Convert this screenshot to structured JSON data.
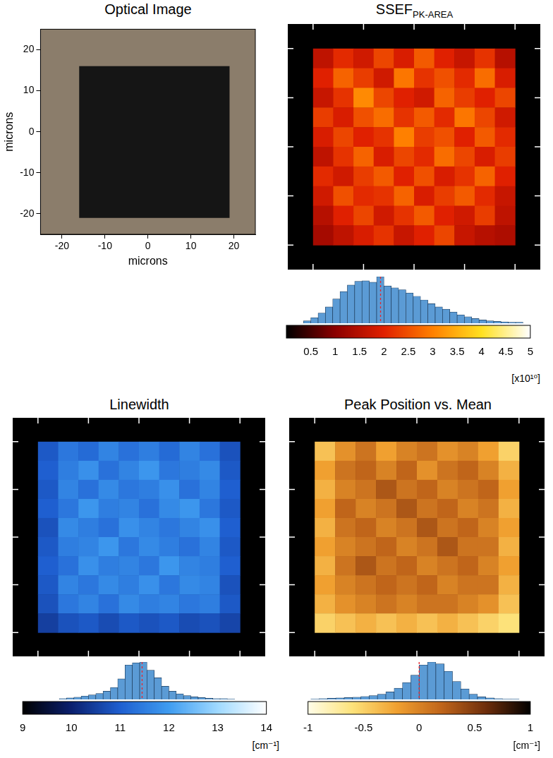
{
  "chart_data": [
    {
      "type": "image",
      "title": "Optical Image",
      "x_label": "microns",
      "y_label": "microns",
      "xlim": [
        -25,
        25
      ],
      "ylim": [
        -25,
        25
      ],
      "xticks": [
        -20,
        -10,
        0,
        10,
        20
      ],
      "yticks": [
        -20,
        -10,
        0,
        10,
        20
      ],
      "color": "#8b7d6b",
      "square": {
        "xlim": [
          -16,
          19
        ],
        "ylim": [
          -21,
          16
        ],
        "color": "#151515"
      }
    },
    {
      "type": "heatmap",
      "title": "SSEF",
      "title_subscript": "PK-AREA",
      "xlim": [
        -25,
        25
      ],
      "ylim": [
        -25,
        25
      ],
      "xticks": [
        -20,
        -10,
        0,
        10,
        20
      ],
      "yticks": [
        -20,
        -10,
        0,
        10,
        20
      ],
      "tick_labels": false,
      "x_edges": [
        -20,
        -16,
        -12,
        -8,
        -4,
        0,
        4,
        8,
        12,
        16,
        20
      ],
      "y_edges": [
        20,
        16,
        12,
        8,
        4,
        0,
        -4,
        -8,
        -12,
        -16,
        -20
      ],
      "cells": [
        [
          1.6,
          2.1,
          1.8,
          2.4,
          1.9,
          2.6,
          2.0,
          1.7,
          2.2,
          1.5
        ],
        [
          2.0,
          2.7,
          2.3,
          1.8,
          2.9,
          2.2,
          2.5,
          2.1,
          2.8,
          1.9
        ],
        [
          1.7,
          2.2,
          3.1,
          2.4,
          2.0,
          1.8,
          2.7,
          2.3,
          2.0,
          2.4
        ],
        [
          2.3,
          1.9,
          2.5,
          2.8,
          2.2,
          2.6,
          2.1,
          2.9,
          2.4,
          1.8
        ],
        [
          1.9,
          2.4,
          2.0,
          2.2,
          3.0,
          2.3,
          2.5,
          2.0,
          2.6,
          2.1
        ],
        [
          1.6,
          2.2,
          2.7,
          1.9,
          2.4,
          2.1,
          2.8,
          2.4,
          1.9,
          2.3
        ],
        [
          2.1,
          1.8,
          2.3,
          2.6,
          2.0,
          2.5,
          1.9,
          2.2,
          2.7,
          2.0
        ],
        [
          1.8,
          2.5,
          2.1,
          2.2,
          2.7,
          1.9,
          2.3,
          2.6,
          2.1,
          1.7
        ],
        [
          1.5,
          2.0,
          2.4,
          1.8,
          2.2,
          2.6,
          2.0,
          1.8,
          2.3,
          1.6
        ],
        [
          1.3,
          1.6,
          1.9,
          2.2,
          1.7,
          2.0,
          2.4,
          1.7,
          1.5,
          1.4
        ]
      ],
      "color_bar": {
        "range": [
          0,
          5
        ],
        "ticks": [
          0.5,
          1,
          1.5,
          2,
          2.5,
          3,
          3.5,
          4,
          4.5,
          5
        ],
        "label": "[x10¹⁰]",
        "colors": [
          "#000000",
          "#8b0000",
          "#e02000",
          "#ff8000",
          "#ffe020",
          "#ffffff"
        ]
      },
      "histogram": {
        "bins": [
          0.35,
          0.5,
          0.65,
          0.8,
          0.95,
          1.1,
          1.25,
          1.4,
          1.55,
          1.7,
          1.85,
          2.0,
          2.15,
          2.3,
          2.45,
          2.6,
          2.75,
          2.9,
          3.05,
          3.2,
          3.35,
          3.5,
          3.65,
          3.8,
          3.95,
          4.1,
          4.25,
          4.4,
          4.55,
          4.7,
          4.85
        ],
        "counts": [
          5,
          12,
          22,
          35,
          52,
          68,
          82,
          90,
          91,
          88,
          100,
          80,
          76,
          72,
          65,
          58,
          50,
          42,
          35,
          30,
          24,
          18,
          14,
          10,
          7,
          5,
          4,
          3,
          2,
          2
        ],
        "mean": 1.93,
        "color": "#5b9bd5",
        "ylim": [
          0,
          100
        ],
        "tick_labels": "x"
      }
    },
    {
      "type": "heatmap",
      "title": "Linewidth",
      "xlim": [
        -25,
        25
      ],
      "ylim": [
        -25,
        25
      ],
      "xticks": [
        -20,
        -10,
        0,
        10,
        20
      ],
      "yticks": [
        -20,
        -10,
        0,
        10,
        20
      ],
      "tick_labels": false,
      "x_edges": [
        -20,
        -16,
        -12,
        -8,
        -4,
        0,
        4,
        8,
        12,
        16,
        20
      ],
      "y_edges": [
        20,
        16,
        12,
        8,
        4,
        0,
        -4,
        -8,
        -12,
        -16,
        -20
      ],
      "cells": [
        [
          10.9,
          11.4,
          11.2,
          11.6,
          11.3,
          11.5,
          11.2,
          11.6,
          11.3,
          10.8
        ],
        [
          11.0,
          11.5,
          11.8,
          11.3,
          11.6,
          11.9,
          11.4,
          11.5,
          11.7,
          10.9
        ],
        [
          10.9,
          11.6,
          11.3,
          11.7,
          11.4,
          11.5,
          11.8,
          11.3,
          11.6,
          11.0
        ],
        [
          11.0,
          11.4,
          11.9,
          11.5,
          11.6,
          11.3,
          11.7,
          11.9,
          11.4,
          10.9
        ],
        [
          10.8,
          11.7,
          11.5,
          11.3,
          11.8,
          11.6,
          11.4,
          11.6,
          11.8,
          11.0
        ],
        [
          10.9,
          11.5,
          11.6,
          11.9,
          11.4,
          11.7,
          11.5,
          11.3,
          11.6,
          10.9
        ],
        [
          11.0,
          11.3,
          11.8,
          11.5,
          11.6,
          11.4,
          11.9,
          11.6,
          11.5,
          11.0
        ],
        [
          10.9,
          11.6,
          11.4,
          11.7,
          11.5,
          11.8,
          11.4,
          11.7,
          11.6,
          10.8
        ],
        [
          10.8,
          11.4,
          11.6,
          11.3,
          11.7,
          11.5,
          11.6,
          11.4,
          11.5,
          10.9
        ],
        [
          10.5,
          10.8,
          10.9,
          10.7,
          10.9,
          10.8,
          10.9,
          10.7,
          10.8,
          10.6
        ]
      ],
      "color_bar": {
        "range": [
          9,
          14
        ],
        "ticks": [
          9,
          10,
          11,
          12,
          13,
          14
        ],
        "label": "[cm⁻¹]",
        "colors": [
          "#000000",
          "#0a1f6e",
          "#1f5fd0",
          "#3f9cf0",
          "#9fd9ff",
          "#ffffff"
        ]
      },
      "histogram": {
        "bins": [
          9.75,
          9.9,
          10.05,
          10.2,
          10.35,
          10.5,
          10.65,
          10.8,
          10.95,
          11.1,
          11.25,
          11.4,
          11.55,
          11.7,
          11.85,
          12.0,
          12.15,
          12.3,
          12.45,
          12.6,
          12.75,
          12.9,
          13.05,
          13.2,
          13.35
        ],
        "counts": [
          2,
          4,
          6,
          9,
          12,
          16,
          22,
          32,
          55,
          92,
          98,
          100,
          78,
          58,
          35,
          22,
          15,
          10,
          7,
          5,
          3,
          2,
          2,
          1
        ],
        "mean": 11.45,
        "color": "#5b9bd5",
        "ylim": [
          0,
          100
        ],
        "tick_labels": "x"
      }
    },
    {
      "type": "heatmap",
      "title": "Peak Position vs. Mean",
      "xlim": [
        -25,
        25
      ],
      "ylim": [
        -25,
        25
      ],
      "xticks": [
        -20,
        -10,
        0,
        10,
        20
      ],
      "yticks": [
        -20,
        -10,
        0,
        10,
        20
      ],
      "tick_labels": false,
      "x_edges": [
        -20,
        -16,
        -12,
        -8,
        -4,
        0,
        4,
        8,
        12,
        16,
        20
      ],
      "y_edges": [
        20,
        16,
        12,
        8,
        4,
        0,
        -4,
        -8,
        -12,
        -16,
        -20
      ],
      "cells": [
        [
          -0.4,
          -0.1,
          0.1,
          -0.2,
          0.0,
          0.1,
          -0.1,
          0.0,
          -0.2,
          -0.5
        ],
        [
          -0.2,
          0.1,
          0.2,
          0.0,
          0.2,
          -0.1,
          0.1,
          0.2,
          0.0,
          -0.3
        ],
        [
          -0.3,
          0.0,
          0.1,
          0.3,
          0.1,
          0.2,
          0.0,
          0.1,
          0.2,
          -0.2
        ],
        [
          -0.2,
          0.2,
          0.0,
          0.1,
          0.3,
          0.1,
          0.2,
          0.0,
          0.1,
          -0.3
        ],
        [
          -0.3,
          0.1,
          0.2,
          0.0,
          0.1,
          0.3,
          0.1,
          0.2,
          0.0,
          -0.2
        ],
        [
          -0.2,
          0.0,
          0.1,
          0.2,
          0.0,
          0.1,
          0.3,
          0.1,
          0.1,
          -0.3
        ],
        [
          -0.3,
          0.1,
          0.3,
          0.1,
          0.2,
          0.0,
          0.1,
          0.2,
          0.0,
          -0.2
        ],
        [
          -0.2,
          0.0,
          0.1,
          0.2,
          0.1,
          0.2,
          0.0,
          0.1,
          0.1,
          -0.3
        ],
        [
          -0.3,
          -0.1,
          0.0,
          0.1,
          0.0,
          0.1,
          0.1,
          0.0,
          -0.1,
          -0.4
        ],
        [
          -0.5,
          -0.4,
          -0.3,
          -0.4,
          -0.3,
          -0.4,
          -0.3,
          -0.4,
          -0.5,
          -0.6
        ]
      ],
      "color_bar": {
        "range": [
          -1,
          1
        ],
        "ticks": [
          -1,
          -0.5,
          0,
          0.5,
          1
        ],
        "label": "[cm⁻¹]",
        "colors": [
          "#fffde8",
          "#fde27a",
          "#f0a030",
          "#c0651a",
          "#6e2e0c",
          "#000000"
        ]
      },
      "histogram": {
        "bins": [
          -0.975,
          -0.9,
          -0.825,
          -0.75,
          -0.675,
          -0.6,
          -0.525,
          -0.45,
          -0.375,
          -0.3,
          -0.225,
          -0.15,
          -0.075,
          0,
          0.075,
          0.15,
          0.225,
          0.3,
          0.375,
          0.45,
          0.525,
          0.6,
          0.675,
          0.75,
          0.825,
          0.9
        ],
        "counts": [
          1,
          2,
          3,
          4,
          5,
          6,
          8,
          10,
          14,
          20,
          30,
          45,
          65,
          92,
          100,
          95,
          75,
          48,
          28,
          14,
          7,
          4,
          2,
          1,
          1
        ],
        "mean": 0,
        "color": "#5b9bd5",
        "ylim": [
          0,
          100
        ],
        "tick_labels": "x"
      }
    }
  ]
}
